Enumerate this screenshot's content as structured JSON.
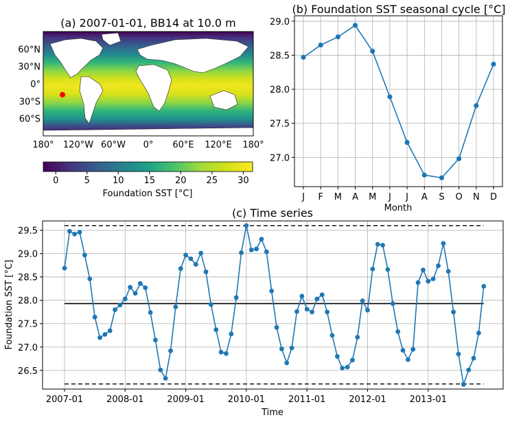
{
  "colors": {
    "line": "#1f77b4",
    "grid": "#b0b0b0",
    "ocean_low": "#440154",
    "ocean_high": "#fde725",
    "land": "#ffffff",
    "marker": "#ff0000"
  },
  "chart_data": [
    {
      "id": "a",
      "type": "heatmap",
      "title": "(a) 2007-01-01, BB14 at 10.0 m",
      "lat_ticks": [
        "60°N",
        "30°N",
        "0°",
        "30°S",
        "60°S"
      ],
      "lat_values": [
        60,
        30,
        0,
        -30,
        -60
      ],
      "lon_ticks": [
        "180°",
        "120°W",
        "60°W",
        "0°",
        "60°E",
        "120°E",
        "180°"
      ],
      "lon_values": [
        -180,
        -120,
        -60,
        0,
        60,
        120,
        180
      ],
      "extent": {
        "lon": [
          -180,
          180
        ],
        "lat": [
          -90,
          90
        ]
      },
      "marker": {
        "lon": -147,
        "lat": -19
      },
      "colorbar": {
        "label": "Foundation SST [°C]",
        "ticks": [
          "0",
          "5",
          "10",
          "15",
          "20",
          "25",
          "30"
        ],
        "tick_values": [
          0,
          5,
          10,
          15,
          20,
          25,
          30
        ],
        "range": [
          -2,
          31.5
        ],
        "colormap": "viridis"
      }
    },
    {
      "id": "b",
      "type": "line",
      "title": "(b) Foundation SST seasonal cycle [°C]",
      "xlabel": "Month",
      "categories": [
        "J",
        "F",
        "M",
        "A",
        "M",
        "J",
        "J",
        "A",
        "S",
        "O",
        "N",
        "D"
      ],
      "values": [
        28.47,
        28.65,
        28.77,
        28.94,
        28.56,
        27.89,
        27.22,
        26.74,
        26.7,
        26.98,
        27.76,
        28.37
      ],
      "yticks": [
        "27.0",
        "27.5",
        "28.0",
        "28.5",
        "29.0"
      ],
      "ytick_values": [
        27.0,
        27.5,
        28.0,
        28.5,
        29.0
      ],
      "ylim": [
        26.57,
        29.08
      ],
      "grid": true
    },
    {
      "id": "c",
      "type": "line",
      "title": "(c) Time series",
      "xlabel": "Time",
      "ylabel": "Foundation SST [°C]",
      "xticks": [
        "2007-01",
        "2008-01",
        "2009-01",
        "2010-01",
        "2011-01",
        "2012-01",
        "2013-01"
      ],
      "yticks": [
        "26.5",
        "27.0",
        "27.5",
        "28.0",
        "28.5",
        "29.0",
        "29.5"
      ],
      "ytick_values": [
        26.5,
        27.0,
        27.5,
        28.0,
        28.5,
        29.0,
        29.5
      ],
      "ylim": [
        26.1,
        29.7
      ],
      "x_start_month": 0,
      "values": [
        28.69,
        29.48,
        29.42,
        29.46,
        28.97,
        28.46,
        27.64,
        27.2,
        27.27,
        27.35,
        27.8,
        27.9,
        28.03,
        28.28,
        28.15,
        28.36,
        28.27,
        27.74,
        27.15,
        26.51,
        26.33,
        26.92,
        27.86,
        28.68,
        28.97,
        28.89,
        28.77,
        29.01,
        28.61,
        27.91,
        27.37,
        26.89,
        26.86,
        27.28,
        28.06,
        29.02,
        29.6,
        29.08,
        29.1,
        29.31,
        29.04,
        28.2,
        27.42,
        26.96,
        26.66,
        26.98,
        27.76,
        28.09,
        27.81,
        27.75,
        28.03,
        28.12,
        27.75,
        27.25,
        26.8,
        26.55,
        26.57,
        26.72,
        27.21,
        27.99,
        27.79,
        28.67,
        29.2,
        29.18,
        28.66,
        27.93,
        27.33,
        26.93,
        26.73,
        26.95,
        28.38,
        28.65,
        28.41,
        28.46,
        28.74,
        29.22,
        28.62,
        27.75,
        26.85,
        26.2,
        26.51,
        26.76,
        27.3,
        28.3
      ],
      "mean": 27.93,
      "max": 29.6,
      "min": 26.21,
      "grid": true
    }
  ]
}
